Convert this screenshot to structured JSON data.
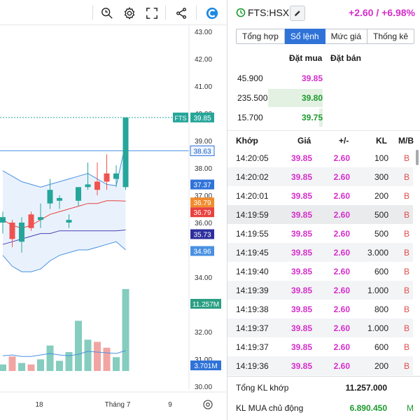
{
  "chart": {
    "y_ticks": [
      "43.00",
      "42.00",
      "41.00",
      "40.00",
      "39.00",
      "38.00",
      "37.00",
      "36.00",
      "35.00",
      "34.00",
      "33.00",
      "32.00",
      "31.00",
      "30.00"
    ],
    "x_ticks": [
      "18",
      "Tháng 7",
      "9"
    ],
    "price_tag": {
      "symbol": "FTS",
      "value": "39.85"
    },
    "level_labels": [
      {
        "value": "38.63",
        "color": "#2f73d8",
        "text_color": "#1a5bc0",
        "filled": false
      },
      {
        "value": "37.37",
        "color": "#2f73d8",
        "text_color": "#ffffff",
        "filled": true
      },
      {
        "value": "36.79",
        "color": "#f08c2e",
        "text_color": "#ffffff",
        "filled": true
      },
      {
        "value": "36.79",
        "color": "#e8413f",
        "text_color": "#ffffff",
        "filled": true
      },
      {
        "value": "35.73",
        "color": "#2e2f9e",
        "text_color": "#ffffff",
        "filled": true
      },
      {
        "value": "34.96",
        "color": "#4a90e2",
        "text_color": "#ffffff",
        "filled": true
      },
      {
        "value": "11.257M",
        "color": "#2b9e83",
        "text_color": "#ffffff",
        "filled": true
      },
      {
        "value": "3.701M",
        "color": "#2f73d8",
        "text_color": "#ffffff",
        "filled": true
      }
    ],
    "colors": {
      "up": "#26a69a",
      "down": "#ef5350",
      "vol_up": "#84cdbf",
      "vol_down": "#f1a5a3",
      "band": "#4a90e2"
    }
  },
  "chart_data": {
    "type": "candlestick",
    "candles": [
      {
        "o": 36.0,
        "h": 36.4,
        "l": 35.6,
        "c": 36.2
      },
      {
        "o": 36.0,
        "h": 36.1,
        "l": 35.1,
        "c": 35.4
      },
      {
        "o": 35.3,
        "h": 36.2,
        "l": 34.9,
        "c": 36.0
      },
      {
        "o": 36.3,
        "h": 36.4,
        "l": 35.7,
        "c": 35.8
      },
      {
        "o": 36.1,
        "h": 36.7,
        "l": 35.8,
        "c": 36.2
      },
      {
        "o": 36.7,
        "h": 37.6,
        "l": 36.5,
        "c": 37.2
      },
      {
        "o": 36.8,
        "h": 37.0,
        "l": 36.5,
        "c": 36.9
      },
      {
        "o": 36.0,
        "h": 36.3,
        "l": 35.8,
        "c": 36.1
      },
      {
        "o": 36.8,
        "h": 37.3,
        "l": 36.6,
        "c": 37.3
      },
      {
        "o": 37.3,
        "h": 38.2,
        "l": 37.2,
        "c": 37.4
      },
      {
        "o": 37.5,
        "h": 38.2,
        "l": 37.0,
        "c": 37.2
      },
      {
        "o": 37.8,
        "h": 38.5,
        "l": 37.2,
        "c": 37.5
      },
      {
        "o": 37.6,
        "h": 38.1,
        "l": 37.3,
        "c": 37.8
      },
      {
        "o": 37.3,
        "h": 39.85,
        "l": 37.2,
        "c": 39.85
      }
    ],
    "volumes": [
      0.9,
      2.0,
      1.1,
      0.9,
      1.6,
      3.5,
      1.4,
      2.6,
      6.9,
      4.3,
      4.0,
      3.2,
      1.9,
      11.257
    ]
  },
  "header": {
    "ticker": "FTS:HSX",
    "change": "+2.60 / +6.98%"
  },
  "tabs": [
    {
      "label": "Tổng hợp",
      "active": false
    },
    {
      "label": "Sổ lệnh",
      "active": true
    },
    {
      "label": "Mức giá",
      "active": false
    },
    {
      "label": "Thống kê",
      "active": false
    }
  ],
  "book": {
    "bid_header": "Đặt mua",
    "ask_header": "Đặt bán",
    "rows": [
      {
        "volume": "45.900",
        "price": "39.85",
        "bar": 0.0,
        "color": "magenta"
      },
      {
        "volume": "235.500",
        "price": "39.80",
        "bar": 1.0,
        "color": "green"
      },
      {
        "volume": "15.700",
        "price": "39.75",
        "bar": 0.05,
        "color": "green"
      }
    ]
  },
  "trades": {
    "headers": {
      "time": "Khớp",
      "price": "Giá",
      "change": "+/-",
      "volume": "KL",
      "side": "M/B"
    },
    "rows": [
      {
        "time": "14:20:05",
        "price": "39.85",
        "change": "2.60",
        "volume": "100",
        "side": "B"
      },
      {
        "time": "14:20:02",
        "price": "39.85",
        "change": "2.60",
        "volume": "300",
        "side": "B"
      },
      {
        "time": "14:20:01",
        "price": "39.85",
        "change": "2.60",
        "volume": "200",
        "side": "B"
      },
      {
        "time": "14:19:59",
        "price": "39.85",
        "change": "2.60",
        "volume": "500",
        "side": "B"
      },
      {
        "time": "14:19:55",
        "price": "39.85",
        "change": "2.60",
        "volume": "500",
        "side": "B"
      },
      {
        "time": "14:19:45",
        "price": "39.85",
        "change": "2.60",
        "volume": "3.000",
        "side": "B"
      },
      {
        "time": "14:19:40",
        "price": "39.85",
        "change": "2.60",
        "volume": "600",
        "side": "B"
      },
      {
        "time": "14:19:39",
        "price": "39.85",
        "change": "2.60",
        "volume": "1.000",
        "side": "B"
      },
      {
        "time": "14:19:38",
        "price": "39.85",
        "change": "2.60",
        "volume": "800",
        "side": "B"
      },
      {
        "time": "14:19:37",
        "price": "39.85",
        "change": "2.60",
        "volume": "1.000",
        "side": "B"
      },
      {
        "time": "14:19:37",
        "price": "39.85",
        "change": "2.60",
        "volume": "600",
        "side": "B"
      },
      {
        "time": "14:19:36",
        "price": "39.85",
        "change": "2.60",
        "volume": "200",
        "side": "B"
      }
    ]
  },
  "summary": {
    "total_label": "Tổng KL khớp",
    "total_value": "11.257.000",
    "active_buy_label": "KL MUA chủ động",
    "active_buy_value": "6.890.450",
    "active_buy_tag": "M"
  }
}
